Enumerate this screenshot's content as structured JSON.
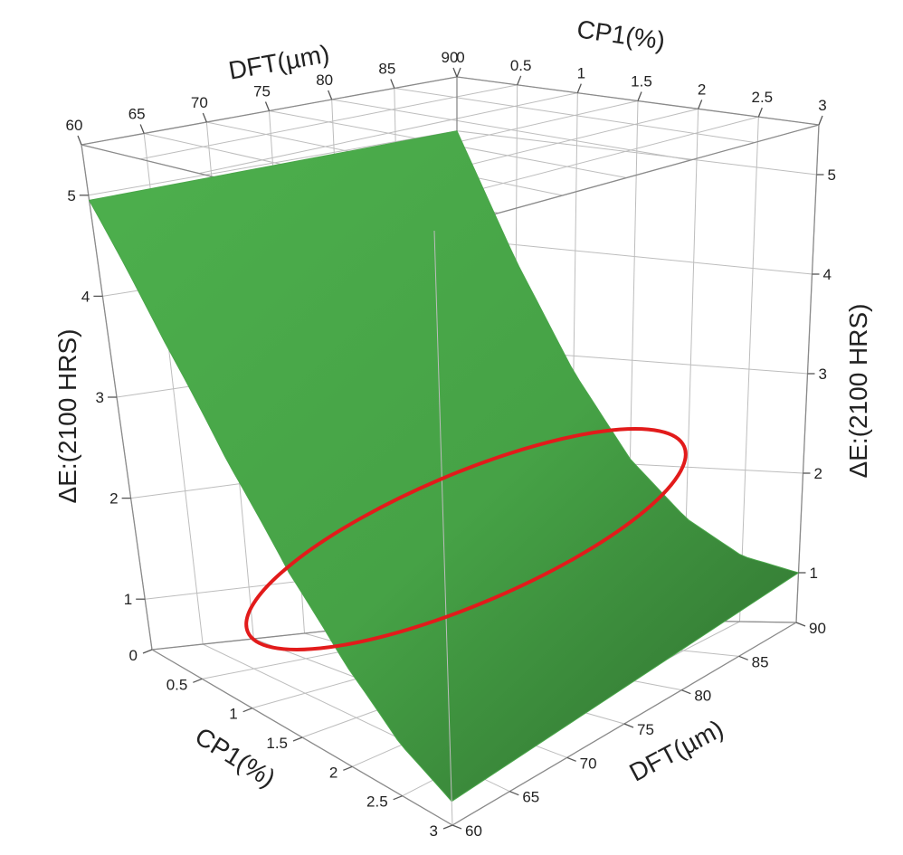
{
  "chart_data": {
    "type": "surface",
    "x_axis": {
      "label": "DFT(µm)",
      "range": [
        60,
        90
      ],
      "ticks": [
        60,
        65,
        70,
        75,
        80,
        85,
        90
      ]
    },
    "y_axis": {
      "label": "CP1(%)",
      "range": [
        0,
        3
      ],
      "ticks": [
        "0",
        "0.5",
        "1",
        "1.5",
        "2",
        "2.5",
        "3"
      ]
    },
    "z_axis": {
      "label": "ΔE:(2100 HRS)",
      "range": [
        0.5,
        5.5
      ],
      "ticks": [
        1,
        2,
        3,
        4,
        5
      ]
    },
    "surface": {
      "description_points": [
        {
          "dft": 60,
          "cp1": 0,
          "dE": 4.95
        },
        {
          "dft": 90,
          "cp1": 0,
          "dE": 5.0
        },
        {
          "dft": 60,
          "cp1": 3,
          "dE": 0.7
        },
        {
          "dft": 90,
          "cp1": 3,
          "dE": 1.0
        }
      ],
      "grid": {
        "cp1": [
          0,
          0.5,
          1,
          1.5,
          2,
          2.5,
          3
        ],
        "dft": [
          60,
          90
        ],
        "dE_at_dft60": [
          4.95,
          3.8,
          2.8,
          2.0,
          1.4,
          0.95,
          0.7
        ],
        "dE_at_dft90": [
          5.0,
          3.85,
          2.85,
          2.05,
          1.5,
          1.15,
          1.0
        ]
      },
      "color": "#4aa64a"
    },
    "highlight": {
      "shape": "ellipse",
      "color": "#e21b1b"
    },
    "grid": true
  }
}
